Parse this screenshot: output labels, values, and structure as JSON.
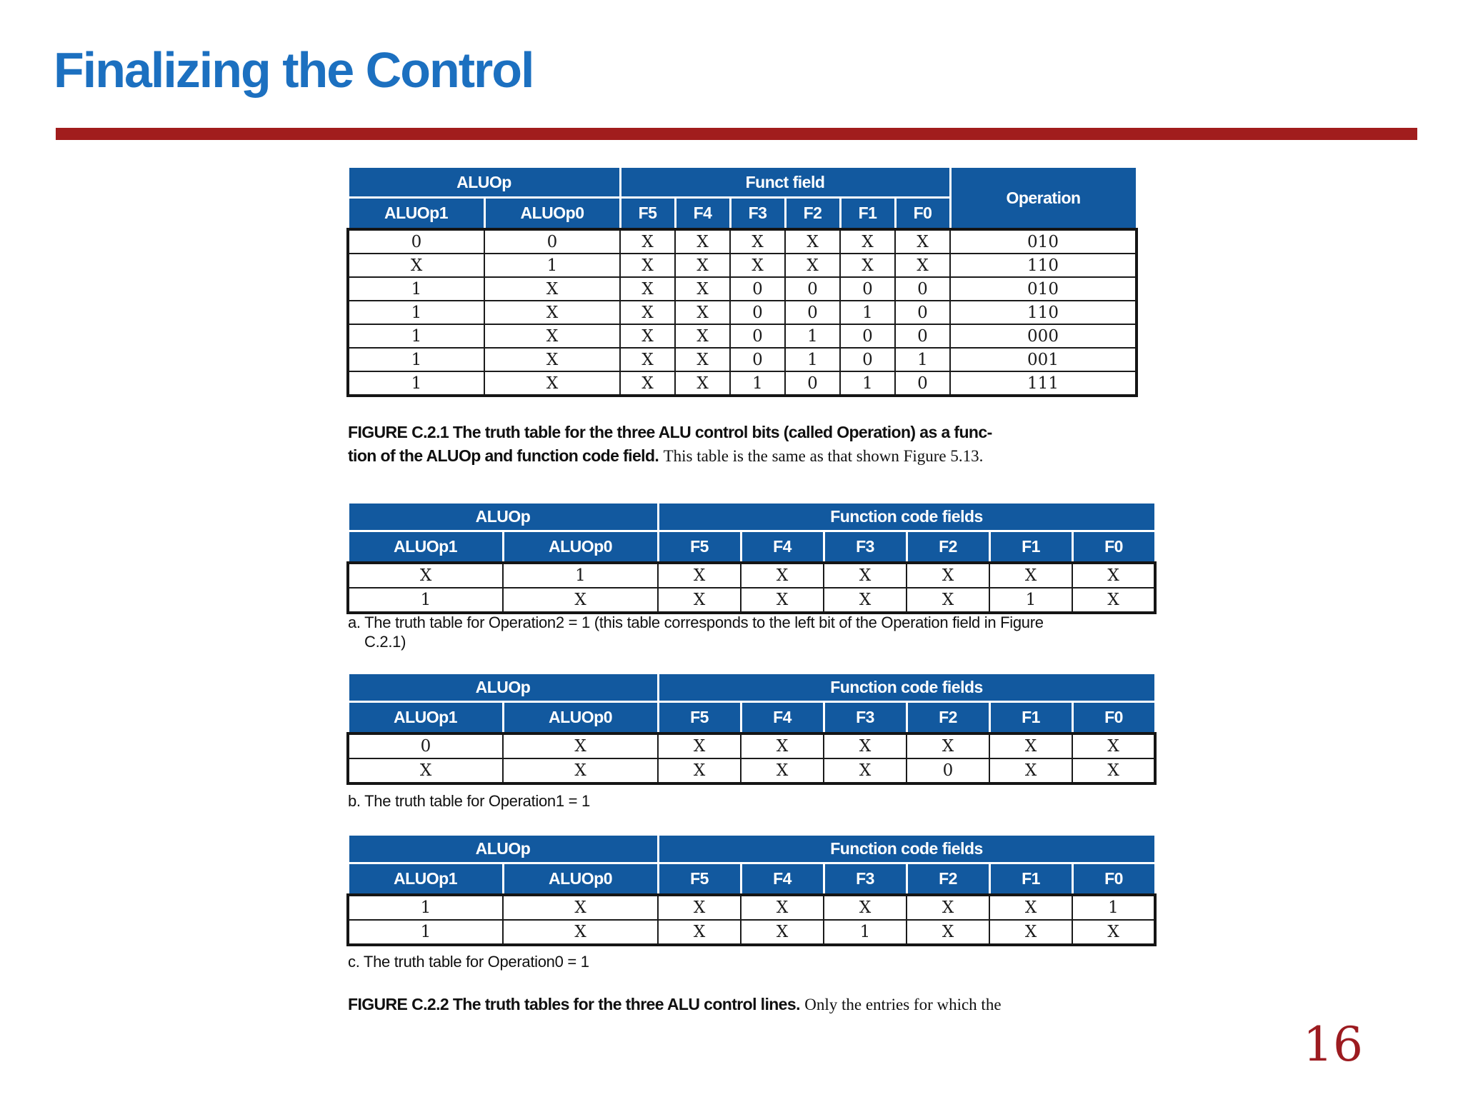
{
  "title": "Finalizing the Control",
  "page_number": "16",
  "colors": {
    "title_blue": "#1c70c0",
    "table_header_blue": "#12599f",
    "rule_red": "#a11d1d",
    "page_number_red": "#9c1b20"
  },
  "figure1": {
    "table": {
      "group_headers": {
        "aluop": "ALUOp",
        "funct": "Funct field",
        "operation": "Operation"
      },
      "columns": [
        "ALUOp1",
        "ALUOp0",
        "F5",
        "F4",
        "F3",
        "F2",
        "F1",
        "F0"
      ],
      "rows": [
        [
          "0",
          "0",
          "X",
          "X",
          "X",
          "X",
          "X",
          "X",
          "010"
        ],
        [
          "X",
          "1",
          "X",
          "X",
          "X",
          "X",
          "X",
          "X",
          "110"
        ],
        [
          "1",
          "X",
          "X",
          "X",
          "0",
          "0",
          "0",
          "0",
          "010"
        ],
        [
          "1",
          "X",
          "X",
          "X",
          "0",
          "0",
          "1",
          "0",
          "110"
        ],
        [
          "1",
          "X",
          "X",
          "X",
          "0",
          "1",
          "0",
          "0",
          "000"
        ],
        [
          "1",
          "X",
          "X",
          "X",
          "0",
          "1",
          "0",
          "1",
          "001"
        ],
        [
          "1",
          "X",
          "X",
          "X",
          "1",
          "0",
          "1",
          "0",
          "111"
        ]
      ]
    },
    "caption": {
      "line1_bold": "FIGURE C.2.1   The truth table for the three ALU control bits (called Operation) as a func-",
      "line2_bold": "tion of the ALUOp and function code field.",
      "line2_serif": "This table is the same as that shown Figure 5.13."
    }
  },
  "figure2": {
    "tables": [
      {
        "group_headers": {
          "aluop": "ALUOp",
          "funct": "Function code fields"
        },
        "columns": [
          "ALUOp1",
          "ALUOp0",
          "F5",
          "F4",
          "F3",
          "F2",
          "F1",
          "F0"
        ],
        "rows": [
          [
            "X",
            "1",
            "X",
            "X",
            "X",
            "X",
            "X",
            "X"
          ],
          [
            "1",
            "X",
            "X",
            "X",
            "X",
            "X",
            "1",
            "X"
          ]
        ],
        "caption_lines": [
          "a. The truth table for Operation2 = 1 (this table corresponds to the left bit of the Operation field in Figure",
          "C.2.1)"
        ]
      },
      {
        "group_headers": {
          "aluop": "ALUOp",
          "funct": "Function code fields"
        },
        "columns": [
          "ALUOp1",
          "ALUOp0",
          "F5",
          "F4",
          "F3",
          "F2",
          "F1",
          "F0"
        ],
        "rows": [
          [
            "0",
            "X",
            "X",
            "X",
            "X",
            "X",
            "X",
            "X"
          ],
          [
            "X",
            "X",
            "X",
            "X",
            "X",
            "0",
            "X",
            "X"
          ]
        ],
        "caption_lines": [
          "b. The truth table for Operation1 = 1"
        ]
      },
      {
        "group_headers": {
          "aluop": "ALUOp",
          "funct": "Function code fields"
        },
        "columns": [
          "ALUOp1",
          "ALUOp0",
          "F5",
          "F4",
          "F3",
          "F2",
          "F1",
          "F0"
        ],
        "rows": [
          [
            "1",
            "X",
            "X",
            "X",
            "X",
            "X",
            "X",
            "1"
          ],
          [
            "1",
            "X",
            "X",
            "X",
            "1",
            "X",
            "X",
            "X"
          ]
        ],
        "caption_lines": [
          "c. The truth table for Operation0 = 1"
        ]
      }
    ],
    "caption": {
      "bold": "FIGURE C.2.2   The truth tables for the three ALU control lines.",
      "serif": "Only the entries for which the"
    }
  }
}
